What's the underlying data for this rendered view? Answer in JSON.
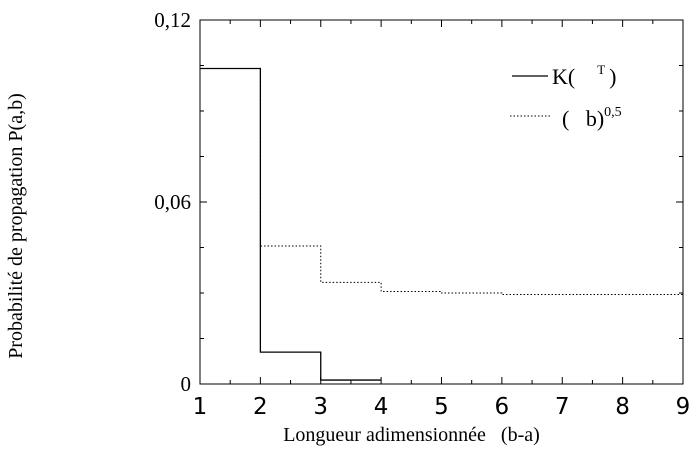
{
  "chart_data": {
    "type": "line",
    "title": "",
    "xlabel": "Longueur adimensionnée   (b-a)",
    "ylabel": "Probabilité de propagation P(a,b)",
    "xlim": [
      1,
      9
    ],
    "ylim": [
      0,
      0.12
    ],
    "x_ticks": [
      1,
      2,
      3,
      4,
      5,
      6,
      7,
      8,
      9
    ],
    "x_tick_labels": [
      "1",
      "2",
      "3",
      "4",
      "5",
      "6",
      "7",
      "8",
      "9"
    ],
    "y_ticks": [
      0,
      0.06,
      0.12
    ],
    "y_tick_labels": [
      "0",
      "0,06",
      "0,12"
    ],
    "grid": false,
    "legend_position": "top-right",
    "series": [
      {
        "name": "K(   T)",
        "label_main": "K(",
        "label_sup": "T",
        "label_close": ")",
        "style": "solid",
        "color": "#000000",
        "step": true,
        "x": [
          1,
          2,
          3,
          4
        ],
        "values": [
          0.104,
          0.0105,
          0.0013,
          0.0013
        ]
      },
      {
        "name": "(   b)0,5",
        "label_main": "(   b)",
        "label_sup": "0,5",
        "style": "dotted",
        "color": "#000000",
        "step": true,
        "x": [
          1,
          2,
          3,
          4,
          5,
          6,
          9
        ],
        "values": [
          0.104,
          0.0455,
          0.0335,
          0.0305,
          0.03,
          0.0295,
          0.0295
        ]
      }
    ]
  }
}
